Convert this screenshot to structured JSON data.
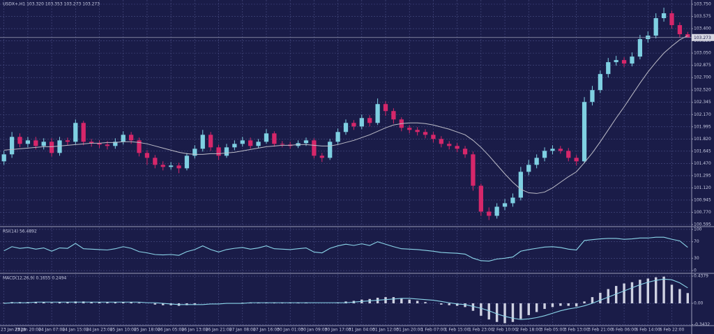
{
  "chart_data": [
    {
      "type": "candlestick",
      "title": "USDX+,H1  103.320 103.353 103.273 103.273",
      "categories": [
        "23 Jan 2023",
        null,
        null,
        "23 Jan 20:00",
        null,
        null,
        "24 Jan 07:00",
        null,
        null,
        "24 Jan 15:00",
        null,
        null,
        "24 Jan 23:00",
        null,
        null,
        "25 Jan 10:00",
        null,
        null,
        "25 Jan 18:00",
        null,
        null,
        "26 Jan 05:00",
        null,
        null,
        "26 Jan 13:00",
        null,
        null,
        "26 Jan 21:00",
        null,
        null,
        "27 Jan 08:00",
        null,
        null,
        "27 Jan 16:00",
        null,
        null,
        "30 Jan 01:00",
        null,
        null,
        "30 Jan 09:00",
        null,
        null,
        "30 Jan 17:00",
        null,
        null,
        "31 Jan 04:00",
        null,
        null,
        "31 Jan 12:00",
        null,
        null,
        "31 Jan 20:00",
        null,
        null,
        "1 Feb 07:00",
        null,
        null,
        "1 Feb 15:00",
        null,
        null,
        "1 Feb 23:00",
        null,
        null,
        "2 Feb 10:00",
        null,
        null,
        "2 Feb 18:00",
        null,
        null,
        "3 Feb 05:00",
        null,
        null,
        "3 Feb 13:00",
        null,
        null,
        "3 Feb 21:00",
        null,
        null,
        "6 Feb 06:00",
        null,
        null,
        "6 Feb 14:00",
        null,
        null,
        "6 Feb 22:00",
        null,
        null
      ],
      "open": [
        101.5,
        101.6,
        101.85,
        101.75,
        101.8,
        101.72,
        101.78,
        101.62,
        101.8,
        101.78,
        102.05,
        101.78,
        101.76,
        101.74,
        101.72,
        101.78,
        101.88,
        101.8,
        101.62,
        101.55,
        101.45,
        101.42,
        101.44,
        101.4,
        101.58,
        101.68,
        101.88,
        101.7,
        101.58,
        101.7,
        101.75,
        101.8,
        101.72,
        101.78,
        101.9,
        101.75,
        101.74,
        101.72,
        101.76,
        101.8,
        101.58,
        101.55,
        101.78,
        101.92,
        102.05,
        102.0,
        102.12,
        102.05,
        102.32,
        102.22,
        102.1,
        101.98,
        101.95,
        101.92,
        101.88,
        101.82,
        101.75,
        101.72,
        101.68,
        101.6,
        101.15,
        100.78,
        100.72,
        100.85,
        100.9,
        100.98,
        101.35,
        101.45,
        101.55,
        101.65,
        101.68,
        101.65,
        101.55,
        101.5,
        102.35,
        102.52,
        102.75,
        102.92,
        102.95,
        102.9,
        103.0,
        103.25,
        103.3,
        103.55,
        103.62,
        103.45,
        103.32
      ],
      "high": [
        101.65,
        101.92,
        101.9,
        101.85,
        101.85,
        101.83,
        101.83,
        101.85,
        101.84,
        102.1,
        102.08,
        101.82,
        101.8,
        101.79,
        101.83,
        101.93,
        101.92,
        101.84,
        101.66,
        101.59,
        101.5,
        101.49,
        101.48,
        101.62,
        101.73,
        101.95,
        101.92,
        101.74,
        101.75,
        101.8,
        101.85,
        101.84,
        101.82,
        101.96,
        101.93,
        101.79,
        101.78,
        101.8,
        101.84,
        101.83,
        101.62,
        101.82,
        101.97,
        102.1,
        102.09,
        102.17,
        102.16,
        102.4,
        102.36,
        102.26,
        102.13,
        102.02,
        101.99,
        101.96,
        101.92,
        101.86,
        101.79,
        101.76,
        101.72,
        101.64,
        101.18,
        100.84,
        100.9,
        100.96,
        101.04,
        101.42,
        101.52,
        101.6,
        101.7,
        101.73,
        101.72,
        101.69,
        101.59,
        102.42,
        102.58,
        102.8,
        102.98,
        103.01,
        102.99,
        103.06,
        103.31,
        103.36,
        103.62,
        103.7,
        103.66,
        103.49,
        103.353
      ],
      "low": [
        101.45,
        101.55,
        101.7,
        101.7,
        101.67,
        101.67,
        101.57,
        101.58,
        101.73,
        101.74,
        101.73,
        101.71,
        101.69,
        101.67,
        101.68,
        101.74,
        101.75,
        101.57,
        101.45,
        101.4,
        101.37,
        101.38,
        101.33,
        101.37,
        101.54,
        101.64,
        101.65,
        101.52,
        101.55,
        101.66,
        101.71,
        101.68,
        101.69,
        101.75,
        101.71,
        101.7,
        101.68,
        101.69,
        101.72,
        101.54,
        101.49,
        101.52,
        101.74,
        101.88,
        101.95,
        101.96,
        102.0,
        102.02,
        102.15,
        102.04,
        101.93,
        101.9,
        101.87,
        101.83,
        101.77,
        101.7,
        101.67,
        101.63,
        101.55,
        101.08,
        100.72,
        100.66,
        100.68,
        100.8,
        100.85,
        100.94,
        101.3,
        101.4,
        101.5,
        101.6,
        101.61,
        101.5,
        101.44,
        101.47,
        102.3,
        102.48,
        102.7,
        102.87,
        102.85,
        102.86,
        102.96,
        103.2,
        103.26,
        103.5,
        103.4,
        103.27,
        103.273
      ],
      "close": [
        101.6,
        101.85,
        101.75,
        101.8,
        101.72,
        101.78,
        101.62,
        101.8,
        101.78,
        102.05,
        101.78,
        101.76,
        101.74,
        101.72,
        101.78,
        101.88,
        101.8,
        101.62,
        101.55,
        101.45,
        101.42,
        101.44,
        101.4,
        101.58,
        101.68,
        101.88,
        101.7,
        101.58,
        101.7,
        101.75,
        101.8,
        101.72,
        101.78,
        101.9,
        101.75,
        101.74,
        101.72,
        101.76,
        101.8,
        101.58,
        101.55,
        101.78,
        101.92,
        102.05,
        102.0,
        102.12,
        102.05,
        102.32,
        102.22,
        102.1,
        101.98,
        101.95,
        101.92,
        101.88,
        101.82,
        101.75,
        101.72,
        101.68,
        101.6,
        101.15,
        100.78,
        100.72,
        100.85,
        100.9,
        100.98,
        101.35,
        101.45,
        101.55,
        101.65,
        101.68,
        101.65,
        101.55,
        101.5,
        102.35,
        102.52,
        102.75,
        102.92,
        102.95,
        102.9,
        103.0,
        103.25,
        103.3,
        103.55,
        103.62,
        103.45,
        103.32,
        103.273
      ],
      "up_color": "#7fd0e2",
      "down_color": "#d6276a",
      "ma": {
        "color": "#bdbdc8",
        "values": [
          101.66,
          101.67,
          101.68,
          101.69,
          101.7,
          101.71,
          101.71,
          101.72,
          101.73,
          101.74,
          101.75,
          101.76,
          101.76,
          101.77,
          101.77,
          101.78,
          101.78,
          101.77,
          101.75,
          101.72,
          101.69,
          101.66,
          101.63,
          101.61,
          101.6,
          101.6,
          101.61,
          101.61,
          101.62,
          101.63,
          101.65,
          101.67,
          101.69,
          101.71,
          101.72,
          101.73,
          101.73,
          101.74,
          101.74,
          101.73,
          101.72,
          101.72,
          101.74,
          101.77,
          101.8,
          101.84,
          101.88,
          101.93,
          101.98,
          102.02,
          102.04,
          102.05,
          102.05,
          102.04,
          102.02,
          101.99,
          101.96,
          101.92,
          101.88,
          101.8,
          101.7,
          101.58,
          101.45,
          101.32,
          101.2,
          101.1,
          101.05,
          101.04,
          101.06,
          101.12,
          101.2,
          101.28,
          101.35,
          101.48,
          101.62,
          101.78,
          101.95,
          102.12,
          102.28,
          102.45,
          102.62,
          102.78,
          102.92,
          103.05,
          103.15,
          103.24,
          103.3
        ]
      },
      "last_price": 103.273,
      "ylim": [
        100.575,
        103.81
      ],
      "yticks": [
        {
          "value": 103.75,
          "label": "103.750"
        },
        103.575,
        {
          "value": 103.4,
          "label": "103.400"
        },
        103.225,
        {
          "value": 103.05,
          "label": "103.050"
        },
        102.875,
        {
          "value": 102.7,
          "label": "102.700"
        },
        {
          "value": 102.52,
          "label": "102.520"
        },
        102.345,
        {
          "value": 102.17,
          "label": "102.170"
        },
        101.995,
        {
          "value": 101.82,
          "label": "101.820"
        },
        101.645,
        {
          "value": 101.47,
          "label": "101.470"
        },
        101.295,
        {
          "value": 101.12,
          "label": "101.120"
        },
        100.945,
        {
          "value": 100.77,
          "label": "100.770"
        },
        100.595
      ],
      "grid": true
    },
    {
      "type": "line",
      "title": "RSI(14) 56.4892",
      "values": [
        48,
        58,
        54,
        56,
        52,
        55,
        47,
        55,
        54,
        66,
        53,
        52,
        51,
        50,
        53,
        58,
        54,
        46,
        43,
        39,
        38,
        39,
        37,
        46,
        51,
        60,
        51,
        45,
        51,
        54,
        56,
        52,
        55,
        60,
        53,
        52,
        51,
        53,
        55,
        45,
        43,
        54,
        60,
        64,
        61,
        65,
        61,
        70,
        64,
        58,
        53,
        52,
        51,
        49,
        47,
        44,
        43,
        42,
        40,
        30,
        24,
        23,
        28,
        30,
        33,
        47,
        51,
        54,
        57,
        58,
        56,
        52,
        50,
        73,
        75,
        77,
        78,
        78,
        76,
        77,
        79,
        79,
        81,
        81,
        76,
        72,
        56.49
      ],
      "color": "#8cd6ea",
      "ylim": [
        -5,
        105
      ],
      "yticks": [
        100,
        70,
        30,
        0
      ],
      "grid": true
    },
    {
      "type": "bar",
      "title": "MACD(12,26,9) 0.1655 0.2494",
      "values": [
        0.01,
        0.02,
        0.02,
        0.02,
        0.02,
        0.02,
        0.01,
        0.02,
        0.02,
        0.03,
        0.03,
        0.02,
        0.02,
        0.02,
        0.02,
        0.02,
        0.02,
        0.01,
        0.0,
        -0.02,
        -0.03,
        -0.03,
        -0.04,
        -0.03,
        -0.02,
        0.0,
        0.0,
        0.0,
        0.0,
        0.0,
        0.01,
        0.01,
        0.01,
        0.01,
        0.01,
        0.01,
        0.01,
        0.01,
        0.01,
        0.0,
        0.0,
        0.0,
        0.01,
        0.03,
        0.04,
        0.06,
        0.07,
        0.09,
        0.1,
        0.1,
        0.08,
        0.06,
        0.04,
        0.02,
        0.0,
        -0.02,
        -0.03,
        -0.04,
        -0.06,
        -0.12,
        -0.2,
        -0.26,
        -0.3,
        -0.32,
        -0.3,
        -0.25,
        -0.19,
        -0.14,
        -0.09,
        -0.06,
        -0.04,
        -0.04,
        -0.05,
        0.03,
        0.1,
        0.17,
        0.23,
        0.28,
        0.32,
        0.34,
        0.38,
        0.4,
        0.42,
        0.43,
        0.3,
        0.23,
        0.1655
      ],
      "color": "#cfd2e2",
      "signal": {
        "color": "#8cd6ea",
        "values": [
          0.0,
          0.01,
          0.01,
          0.01,
          0.02,
          0.02,
          0.02,
          0.02,
          0.02,
          0.02,
          0.02,
          0.02,
          0.02,
          0.02,
          0.02,
          0.02,
          0.02,
          0.02,
          0.01,
          0.01,
          0.0,
          -0.01,
          -0.02,
          -0.02,
          -0.02,
          -0.02,
          -0.01,
          -0.01,
          0.0,
          0.0,
          0.0,
          0.01,
          0.01,
          0.01,
          0.01,
          0.01,
          0.01,
          0.01,
          0.01,
          0.01,
          0.01,
          0.01,
          0.01,
          0.01,
          0.02,
          0.03,
          0.04,
          0.05,
          0.06,
          0.07,
          0.08,
          0.08,
          0.07,
          0.06,
          0.05,
          0.03,
          0.01,
          -0.01,
          -0.02,
          -0.05,
          -0.08,
          -0.12,
          -0.17,
          -0.21,
          -0.24,
          -0.26,
          -0.25,
          -0.23,
          -0.2,
          -0.16,
          -0.12,
          -0.09,
          -0.07,
          -0.04,
          0.0,
          0.05,
          0.1,
          0.15,
          0.2,
          0.25,
          0.3,
          0.34,
          0.37,
          0.39,
          0.38,
          0.33,
          0.2494
        ]
      },
      "ylim": [
        -0.348,
        0.472
      ],
      "yticks": [
        0.4379,
        {
          "value": 0,
          "label": "0.00"
        },
        -0.3432
      ],
      "grid": true
    }
  ]
}
